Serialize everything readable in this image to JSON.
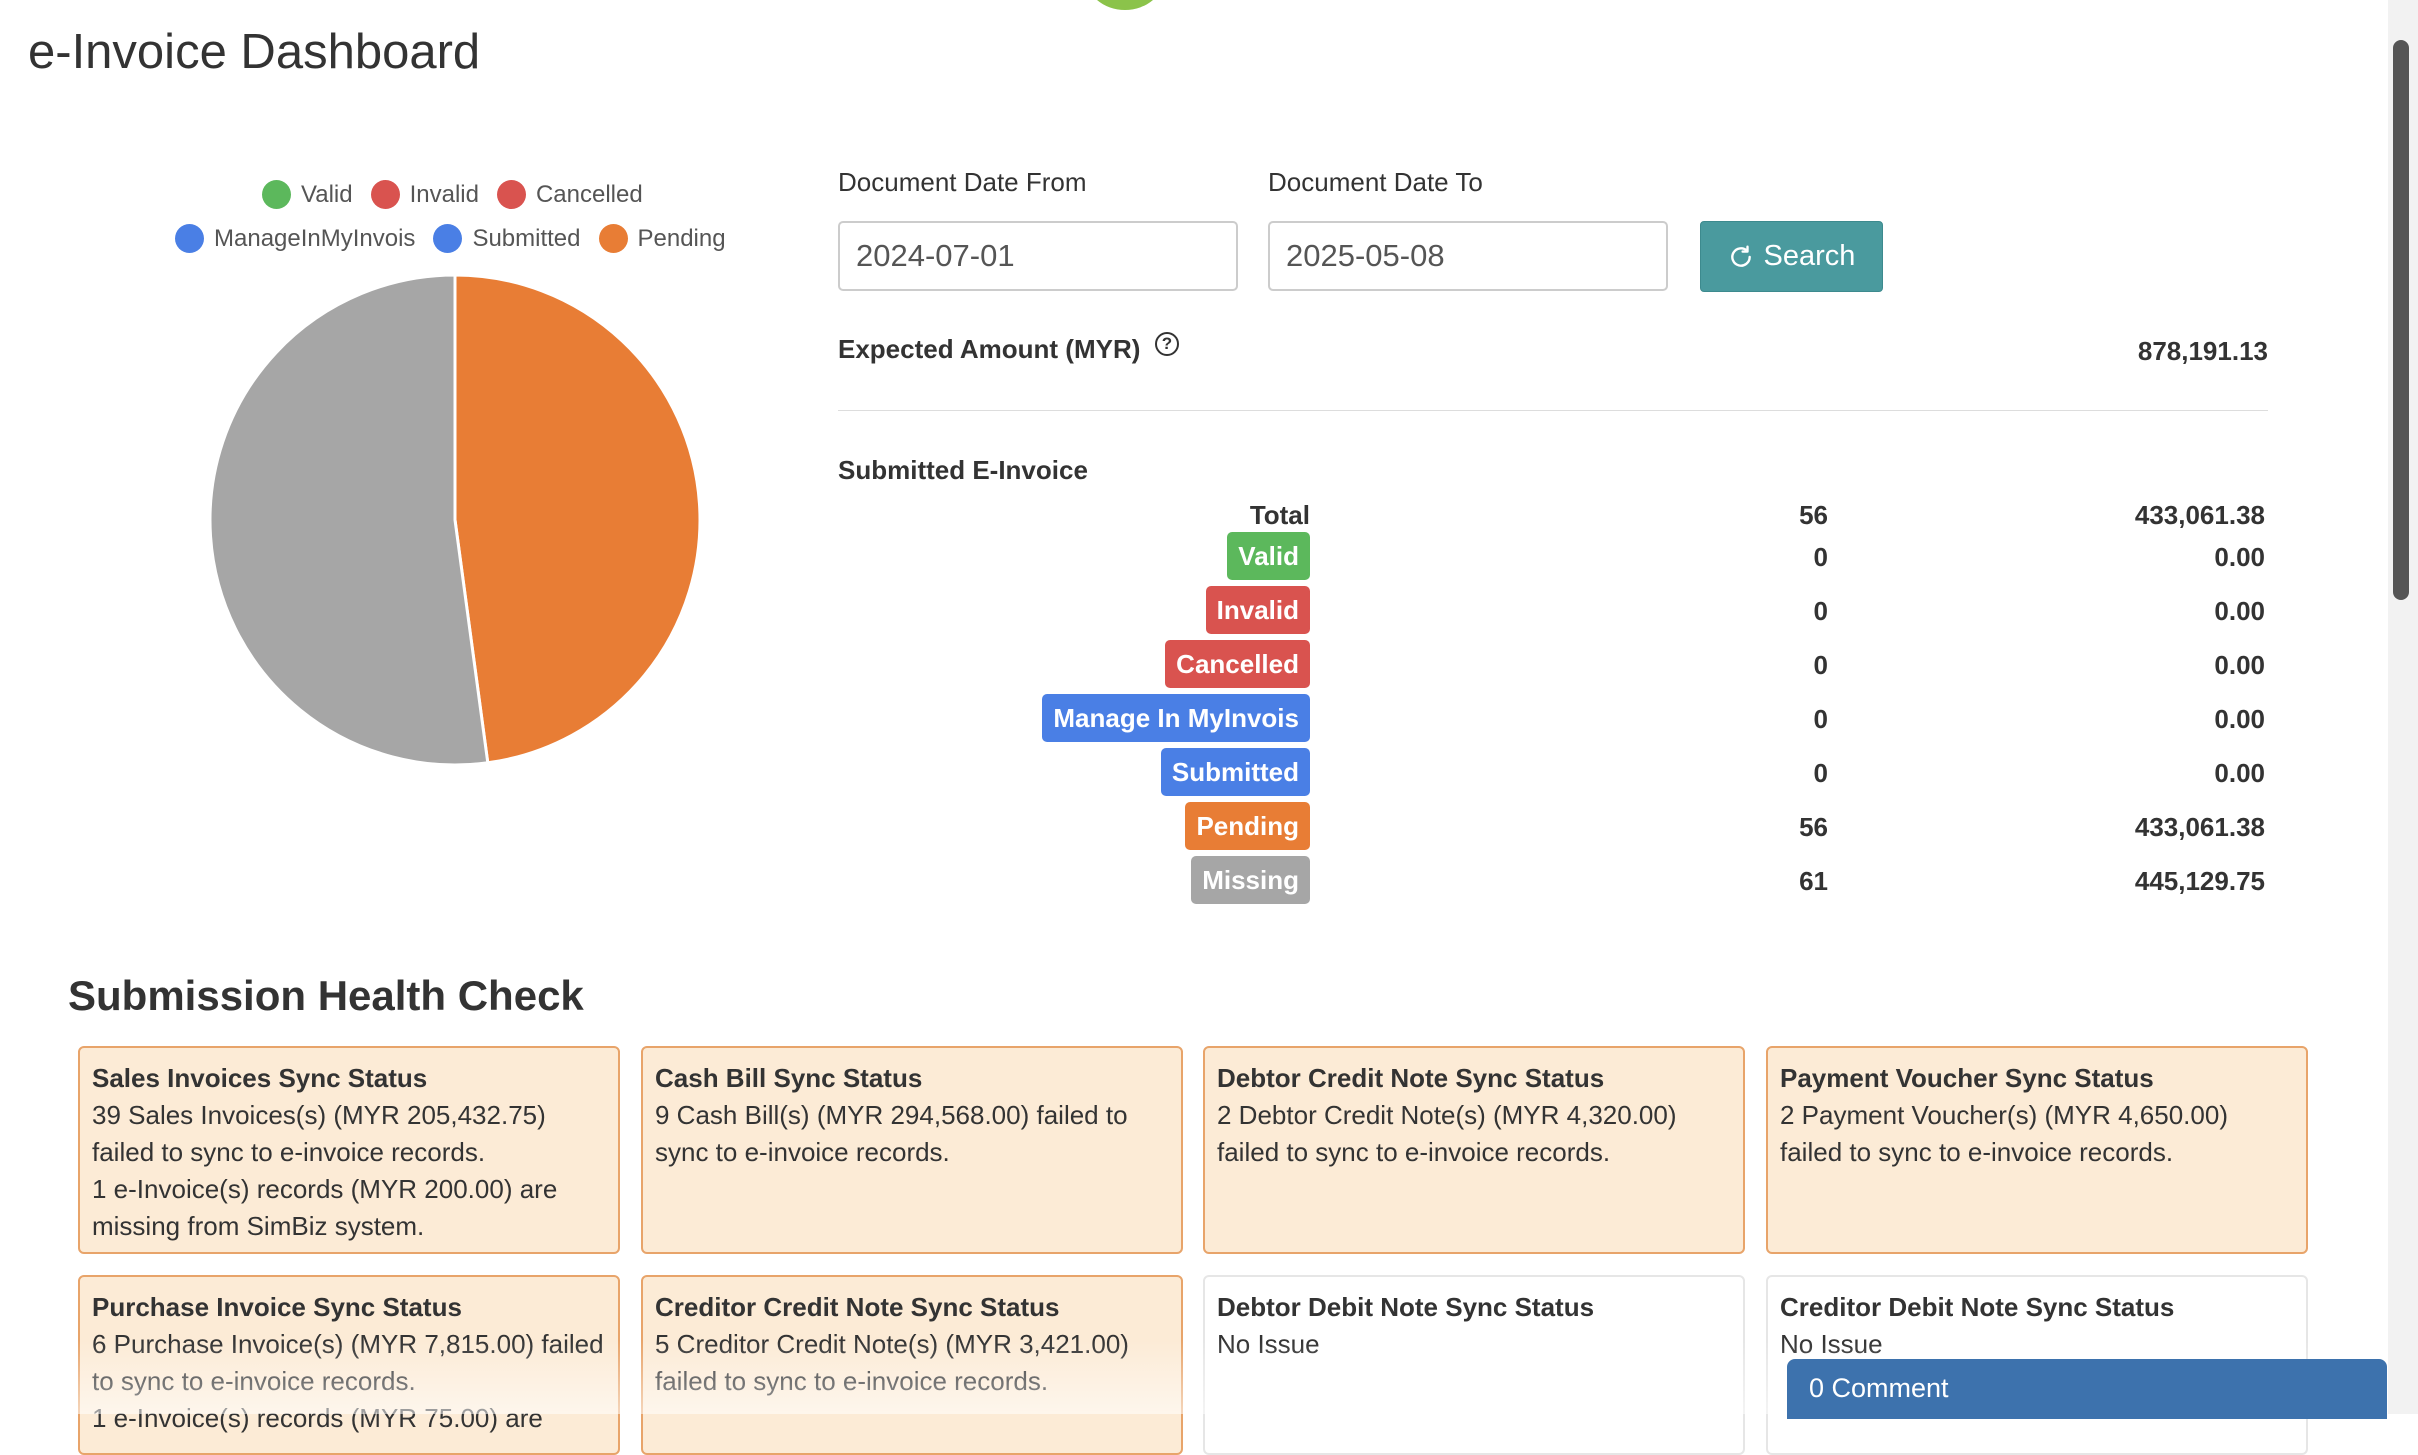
{
  "page": {
    "title": "e-Invoice Dashboard"
  },
  "legend": [
    {
      "label": "Valid",
      "color": "#5cb85c"
    },
    {
      "label": "Invalid",
      "color": "#d9534f"
    },
    {
      "label": "Cancelled",
      "color": "#d9534f"
    },
    {
      "label": "ManageInMyInvois",
      "color": "#4a7fe5"
    },
    {
      "label": "Submitted",
      "color": "#4a7fe5"
    },
    {
      "label": "Pending",
      "color": "#e87d35"
    }
  ],
  "chart_data": {
    "type": "pie",
    "slices": [
      {
        "label": "Pending",
        "value": 56,
        "color": "#e87d35"
      },
      {
        "label": "Missing",
        "value": 61,
        "color": "#a6a6a6"
      }
    ]
  },
  "filters": {
    "date_from_label": "Document Date From",
    "date_from_value": "2024-07-01",
    "date_to_label": "Document Date To",
    "date_to_value": "2025-05-08",
    "search_label": "Search"
  },
  "expected": {
    "label": "Expected Amount (MYR)",
    "help_glyph": "?",
    "value": "878,191.13"
  },
  "submitted": {
    "title": "Submitted E-Invoice",
    "total_label": "Total",
    "total_count": "56",
    "total_amount": "433,061.38",
    "rows": [
      {
        "label": "Valid",
        "color": "#5cb85c",
        "count": "0",
        "amount": "0.00"
      },
      {
        "label": "Invalid",
        "color": "#d9534f",
        "count": "0",
        "amount": "0.00"
      },
      {
        "label": "Cancelled",
        "color": "#d9534f",
        "count": "0",
        "amount": "0.00"
      },
      {
        "label": "Manage In MyInvois",
        "color": "#4a7fe5",
        "count": "0",
        "amount": "0.00"
      },
      {
        "label": "Submitted",
        "color": "#4a7fe5",
        "count": "0",
        "amount": "0.00"
      },
      {
        "label": "Pending",
        "color": "#e87d35",
        "count": "56",
        "amount": "433,061.38"
      },
      {
        "label": "Missing",
        "color": "#a6a6a6",
        "count": "61",
        "amount": "445,129.75"
      }
    ]
  },
  "health": {
    "title": "Submission Health Check",
    "cards": [
      {
        "title": "Sales Invoices Sync Status",
        "lines": [
          "39 Sales Invoices(s) (MYR 205,432.75) failed to sync to e-invoice records.",
          "1 e-Invoice(s) records (MYR 200.00) are missing from SimBiz system."
        ]
      },
      {
        "title": "Cash Bill Sync Status",
        "lines": [
          "9 Cash Bill(s) (MYR 294,568.00) failed to sync to e-invoice records."
        ]
      },
      {
        "title": "Debtor Credit Note Sync Status",
        "lines": [
          "2 Debtor Credit Note(s) (MYR 4,320.00) failed to sync to e-invoice records."
        ]
      },
      {
        "title": "Payment Voucher Sync Status",
        "lines": [
          "2 Payment Voucher(s) (MYR 4,650.00) failed to sync to e-invoice records."
        ]
      },
      {
        "title": "Purchase Invoice Sync Status",
        "lines": [
          "6 Purchase Invoice(s) (MYR 7,815.00) failed to sync to e-invoice records.",
          "1 e-Invoice(s) records (MYR 75.00) are"
        ]
      },
      {
        "title": "Creditor Credit Note Sync Status",
        "lines": [
          "5 Creditor Credit Note(s) (MYR 3,421.00) failed to sync to e-invoice records."
        ]
      },
      {
        "title": "Debtor Debit Note Sync Status",
        "lines": [
          "No Issue"
        ]
      },
      {
        "title": "Creditor Debit Note Sync Status",
        "lines": [
          "No Issue"
        ]
      }
    ]
  },
  "comment": {
    "label": "0 Comment"
  }
}
